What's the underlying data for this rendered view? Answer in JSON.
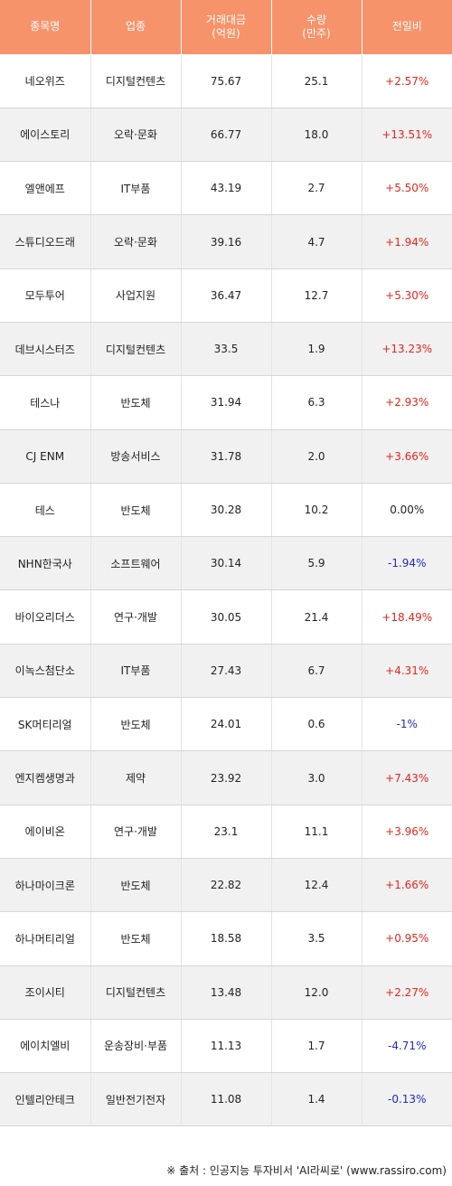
{
  "headers": {
    "name": [
      "종목명"
    ],
    "sector": [
      "업종"
    ],
    "amount": [
      "거래대금",
      "(억원)"
    ],
    "volume": [
      "수량",
      "(만주)"
    ],
    "change": [
      "전일비"
    ]
  },
  "rows": [
    {
      "name": "네오위즈",
      "sector": "디지털컨텐츠",
      "amount": "75.67",
      "volume": "25.1",
      "change": "+2.57%",
      "dir": "up"
    },
    {
      "name": "에이스토리",
      "sector": "오락·문화",
      "amount": "66.77",
      "volume": "18.0",
      "change": "+13.51%",
      "dir": "up"
    },
    {
      "name": "엘앤에프",
      "sector": "IT부품",
      "amount": "43.19",
      "volume": "2.7",
      "change": "+5.50%",
      "dir": "up"
    },
    {
      "name": "스튜디오드래",
      "sector": "오락·문화",
      "amount": "39.16",
      "volume": "4.7",
      "change": "+1.94%",
      "dir": "up"
    },
    {
      "name": "모두투어",
      "sector": "사업지원",
      "amount": "36.47",
      "volume": "12.7",
      "change": "+5.30%",
      "dir": "up"
    },
    {
      "name": "데브시스터즈",
      "sector": "디지털컨텐츠",
      "amount": "33.5",
      "volume": "1.9",
      "change": "+13.23%",
      "dir": "up"
    },
    {
      "name": "테스나",
      "sector": "반도체",
      "amount": "31.94",
      "volume": "6.3",
      "change": "+2.93%",
      "dir": "up"
    },
    {
      "name": "CJ ENM",
      "sector": "방송서비스",
      "amount": "31.78",
      "volume": "2.0",
      "change": "+3.66%",
      "dir": "up"
    },
    {
      "name": "테스",
      "sector": "반도체",
      "amount": "30.28",
      "volume": "10.2",
      "change": "0.00%",
      "dir": "flat"
    },
    {
      "name": "NHN한국사",
      "sector": "소프트웨어",
      "amount": "30.14",
      "volume": "5.9",
      "change": "-1.94%",
      "dir": "down"
    },
    {
      "name": "바이오리더스",
      "sector": "연구·개발",
      "amount": "30.05",
      "volume": "21.4",
      "change": "+18.49%",
      "dir": "up"
    },
    {
      "name": "이녹스첨단소",
      "sector": "IT부품",
      "amount": "27.43",
      "volume": "6.7",
      "change": "+4.31%",
      "dir": "up"
    },
    {
      "name": "SK머티리얼",
      "sector": "반도체",
      "amount": "24.01",
      "volume": "0.6",
      "change": "-1%",
      "dir": "down"
    },
    {
      "name": "엔지켐생명과",
      "sector": "제약",
      "amount": "23.92",
      "volume": "3.0",
      "change": "+7.43%",
      "dir": "up"
    },
    {
      "name": "에이비온",
      "sector": "연구·개발",
      "amount": "23.1",
      "volume": "11.1",
      "change": "+3.96%",
      "dir": "up"
    },
    {
      "name": "하나마이크론",
      "sector": "반도체",
      "amount": "22.82",
      "volume": "12.4",
      "change": "+1.66%",
      "dir": "up"
    },
    {
      "name": "하나머티리얼",
      "sector": "반도체",
      "amount": "18.58",
      "volume": "3.5",
      "change": "+0.95%",
      "dir": "up"
    },
    {
      "name": "조이시티",
      "sector": "디지털컨텐츠",
      "amount": "13.48",
      "volume": "12.0",
      "change": "+2.27%",
      "dir": "up"
    },
    {
      "name": "에이치엘비",
      "sector": "운송장비·부품",
      "amount": "11.13",
      "volume": "1.7",
      "change": "-4.71%",
      "dir": "down"
    },
    {
      "name": "인텔리안테크",
      "sector": "일반전기전자",
      "amount": "11.08",
      "volume": "1.4",
      "change": "-0.13%",
      "dir": "down"
    }
  ],
  "colors": {
    "header_bg": "#f7936a",
    "up": "#e3281e",
    "down": "#1f2bc2",
    "shade": "#f1f1f1"
  },
  "source": "※ 출처 : 인공지능 투자비서 'AI라씨로' (www.rassiro.com)"
}
